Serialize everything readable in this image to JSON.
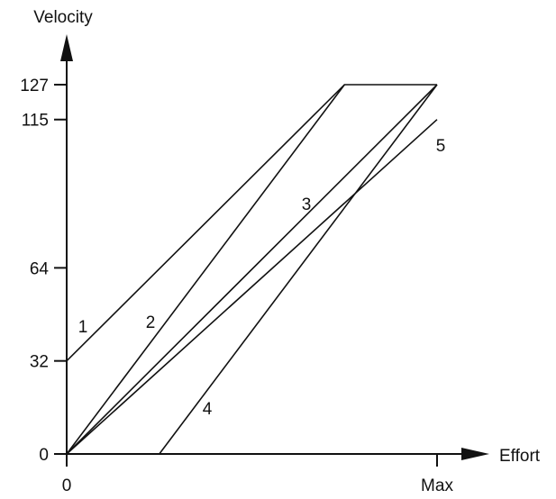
{
  "chart_data": {
    "type": "line",
    "title": "",
    "xlabel": "Effort",
    "ylabel": "Velocity",
    "x_ticks": [
      {
        "value": 0,
        "label": "0"
      },
      {
        "value": 1,
        "label": "Max"
      }
    ],
    "y_ticks": [
      {
        "value": 0,
        "label": "0"
      },
      {
        "value": 32,
        "label": "32"
      },
      {
        "value": 64,
        "label": "64"
      },
      {
        "value": 115,
        "label": "115"
      },
      {
        "value": 127,
        "label": "127"
      }
    ],
    "xlim": [
      0,
      1
    ],
    "ylim": [
      0,
      127
    ],
    "grid": false,
    "legend": "none",
    "series": [
      {
        "label": "1",
        "points": [
          [
            0,
            32
          ],
          [
            0.75,
            127
          ],
          [
            1,
            127
          ]
        ]
      },
      {
        "label": "2",
        "points": [
          [
            0,
            0
          ],
          [
            0.75,
            127
          ]
        ]
      },
      {
        "label": "3",
        "points": [
          [
            0,
            0
          ],
          [
            1,
            127
          ]
        ]
      },
      {
        "label": "4",
        "points": [
          [
            0.25,
            0
          ],
          [
            1,
            127
          ]
        ]
      },
      {
        "label": "5",
        "points": [
          [
            0,
            0
          ],
          [
            1,
            115
          ]
        ]
      }
    ],
    "colors": {
      "line": "#111111",
      "axis": "#111111"
    }
  }
}
